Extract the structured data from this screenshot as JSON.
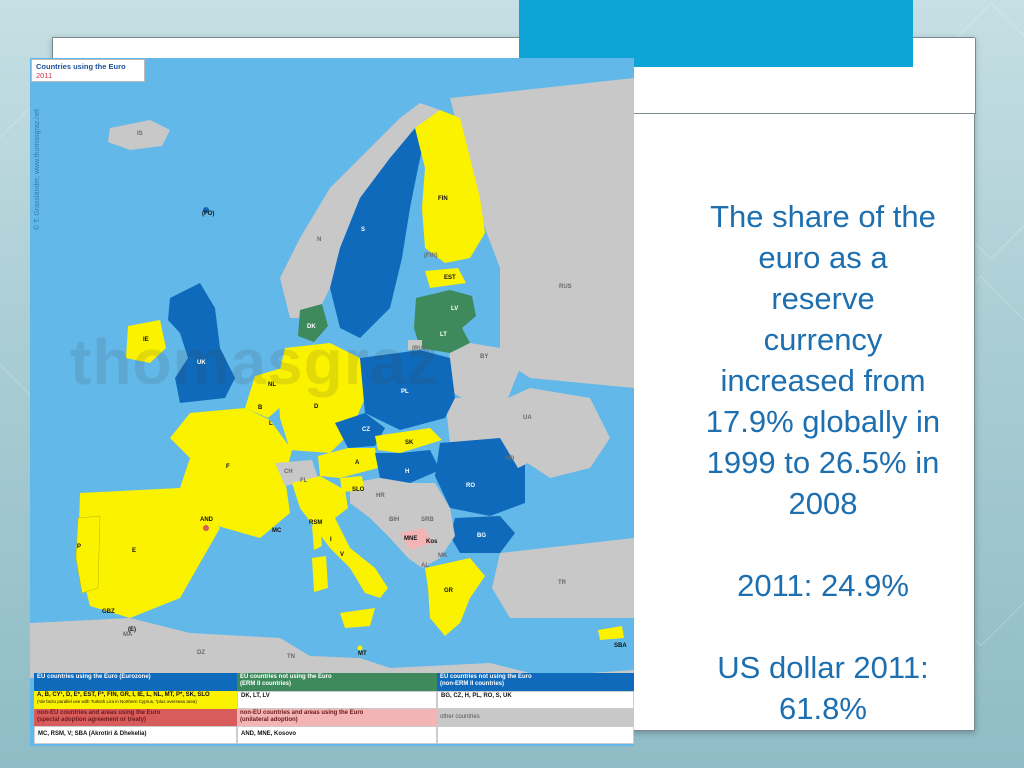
{
  "slide": {
    "text_lines": [
      "The share of the",
      "euro as a",
      "reserve",
      "currency",
      "increased from",
      "17.9% globally in",
      "1999 to 26.5% in",
      "2008"
    ],
    "stat_2011": "2011: 24.9%",
    "usd_lines": [
      "US dollar 2011:",
      "61.8%"
    ]
  },
  "map": {
    "title": "Countries using the Euro",
    "year": "2011",
    "copyright": "© T. Grassländer, www.thomasgraz.net",
    "watermark": "thomasgraz",
    "colors": {
      "sea": "#62b8e8",
      "eurozone": "#fbf200",
      "erm2": "#3e8a5c",
      "non_erm2": "#0f6abb",
      "non_eu_euro": "#d95c5c",
      "unilateral": "#f2b4b4",
      "other": "#c8c8c8"
    },
    "labels": {
      "IS": "IS",
      "FIN": "FIN",
      "N": "N",
      "S": "S",
      "EST": "EST",
      "RUS": "RUS",
      "LV": "LV",
      "LT": "LT",
      "DK": "DK",
      "IE": "IE",
      "UK": "UK",
      "NL": "NL",
      "B": "B",
      "L": "L",
      "D": "D",
      "PL": "PL",
      "BY": "BY",
      "UA": "UA",
      "CZ": "CZ",
      "SK": "SK",
      "F": "F",
      "A": "A",
      "H": "H",
      "CH": "CH",
      "MD": "MD",
      "RO": "RO",
      "SLO": "SLO",
      "HR": "HR",
      "BIH": "BIH",
      "SRB": "SRB",
      "BG": "BG",
      "MNE": "MNE",
      "Kos": "Kos",
      "MK": "MK",
      "AL": "AL",
      "AND": "AND",
      "MC": "MC",
      "RSM": "RSM",
      "V": "V",
      "I": "I",
      "P": "P",
      "E": "E",
      "GR": "GR",
      "TR": "TR",
      "MT": "MT",
      "SBA": "SBA",
      "FL": "FL",
      "MA": "MA",
      "DZ": "DZ",
      "TN": "TN",
      "GBZ": "GBZ",
      "FO": "(FO)",
      "CEU": "(E)",
      "KALI": "(RUS)",
      "Aland": "(FIN)",
      "DK2": "(DK)"
    }
  },
  "legend": {
    "eurozone_header": "EU countries using the Euro (Eurozone)",
    "eurozone_list": "A, B, CY¹, D, E*, EST, F*, FIN, GR, I, IE, L, NL, MT, P*, SK, SLO",
    "eurozone_note": "(¹de facto parallel use with Turkish Lira in Northern Cyprus, *plus overseas area)",
    "erm2_header": "EU countries not using the Euro\n(ERM II countries)",
    "erm2_list": "DK, LT, LV",
    "nonerm_header": "EU countries not using the Euro\n(non-ERM II countries)",
    "nonerm_list": "BG, CZ, H, PL, RO, S, UK",
    "noneu_header": "non-EU countries and areas using the Euro\n(special adoption agreement or treaty)",
    "noneu_list": "MC, RSM, V; SBA (Akrotiri & Dhekelia)",
    "unilateral_header": "non-EU countries and areas using the Euro\n(unilateral adoption)",
    "unilateral_list": "AND, MNE, Kosovo",
    "other_label": "other countries"
  }
}
